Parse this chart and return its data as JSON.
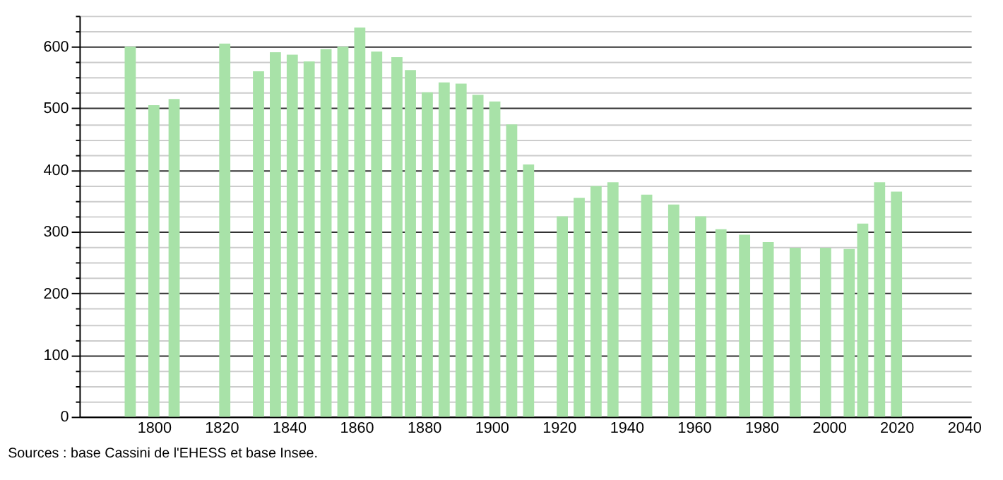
{
  "chart_data": {
    "type": "bar",
    "x": [
      1793,
      1800,
      1806,
      1821,
      1831,
      1836,
      1841,
      1846,
      1851,
      1856,
      1861,
      1866,
      1872,
      1876,
      1881,
      1886,
      1891,
      1896,
      1901,
      1906,
      1911,
      1921,
      1926,
      1931,
      1936,
      1946,
      1954,
      1962,
      1968,
      1975,
      1982,
      1990,
      1999,
      2006,
      2010,
      2015,
      2020
    ],
    "values": [
      600,
      505,
      515,
      605,
      560,
      591,
      587,
      576,
      596,
      600,
      631,
      592,
      583,
      562,
      526,
      542,
      540,
      522,
      511,
      474,
      409,
      325,
      355,
      374,
      380,
      360,
      344,
      325,
      304,
      295,
      283,
      274,
      274,
      272,
      313,
      380,
      365
    ],
    "color": "#a8e2a8",
    "xlim": [
      1780,
      2040
    ],
    "xticks": [
      1800,
      1820,
      1840,
      1860,
      1880,
      1900,
      1920,
      1940,
      1960,
      1980,
      2000,
      2020,
      2040
    ],
    "ylim": [
      0,
      650
    ],
    "yticks": [
      0,
      {
        "value": 25,
        "label": null
      },
      {
        "value": 50,
        "label": null
      },
      {
        "value": 75,
        "label": null
      },
      100,
      {
        "value": 125,
        "label": null
      },
      {
        "value": 150,
        "label": null
      },
      {
        "value": 175,
        "label": null
      },
      200,
      {
        "value": 225,
        "label": null
      },
      {
        "value": 250,
        "label": null
      },
      {
        "value": 275,
        "label": null
      },
      300,
      {
        "value": 325,
        "label": null
      },
      {
        "value": 350,
        "label": null
      },
      {
        "value": 375,
        "label": null
      },
      400,
      {
        "value": 425,
        "label": null
      },
      {
        "value": 450,
        "label": null
      },
      {
        "value": 475,
        "label": null
      },
      500,
      {
        "value": 525,
        "label": null
      },
      {
        "value": 550,
        "label": null
      },
      {
        "value": 575,
        "label": null
      },
      600,
      {
        "value": 625,
        "label": null
      },
      {
        "value": 650,
        "label": null
      }
    ],
    "grid": "y",
    "annotations": [
      "Sources : base Cassini de l'EHESS et base Insee."
    ]
  }
}
